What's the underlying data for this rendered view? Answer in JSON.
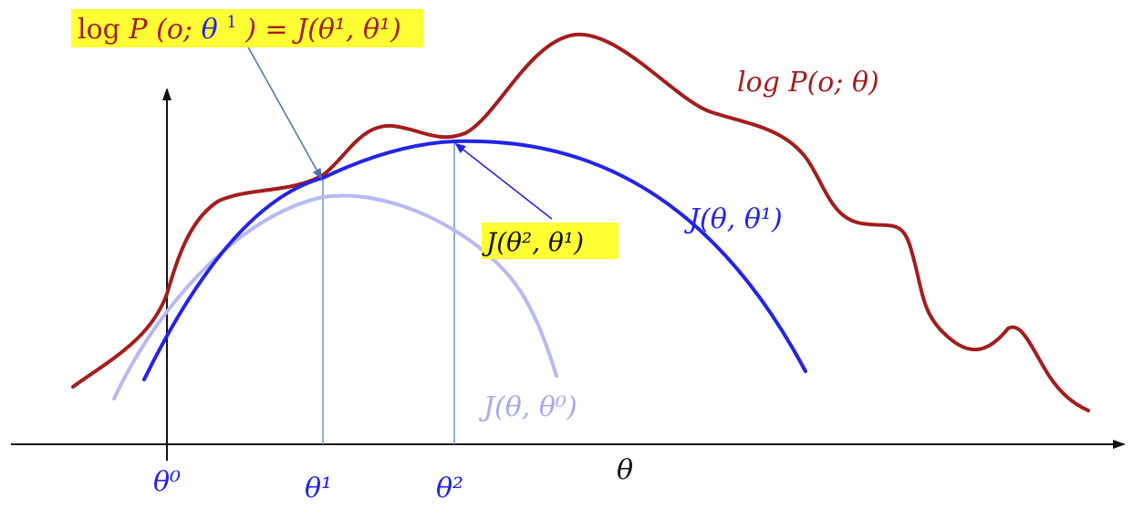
{
  "diagram": {
    "curves": [
      {
        "id": "logp",
        "label": "log P(o; θ)",
        "color": "#a31d1d"
      },
      {
        "id": "j1",
        "label": "J(θ, θ¹)",
        "color": "#2323e8"
      },
      {
        "id": "j0",
        "label": "J(θ, θ⁰)",
        "color": "#a9a9f0"
      }
    ],
    "x_axis_label": "θ",
    "ticks": [
      "θ⁰",
      "θ¹",
      "θ²"
    ],
    "callouts": {
      "top": {
        "left_log": "log",
        "left_P": "P",
        "left_open": "(o; ",
        "left_theta": "θ",
        "left_sup": "1",
        "rest": ") = J(θ¹, θ¹)",
        "highlight": "#ffff33"
      },
      "mid": {
        "text": "J(θ², θ¹)",
        "highlight": "#ffff33"
      }
    },
    "colors": {
      "accent_red": "#a31d1d",
      "accent_blue": "#2323e8",
      "faint_blue": "#a9a9f0",
      "guide_line": "#5a7fc0"
    }
  }
}
